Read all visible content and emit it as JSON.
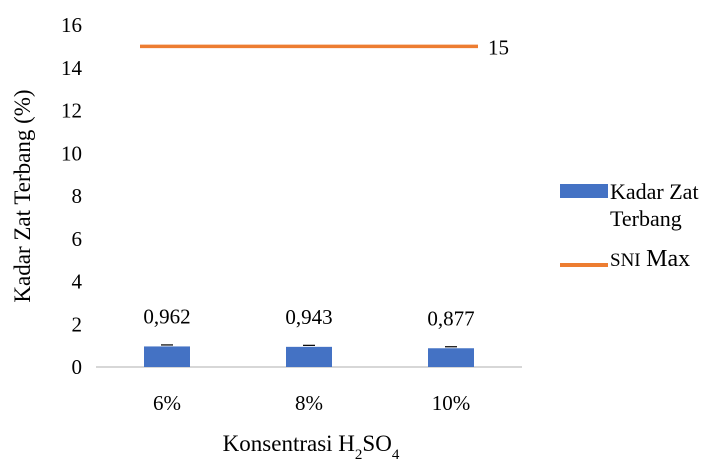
{
  "chart_data": {
    "type": "bar",
    "categories": [
      "6%",
      "8%",
      "10%"
    ],
    "series": [
      {
        "name": "Kadar Zat Terbang",
        "kind": "bar",
        "values": [
          0.962,
          0.943,
          0.877
        ],
        "color": "#4472C4"
      },
      {
        "name": "SNI Max",
        "kind": "line",
        "values": [
          15,
          15,
          15
        ],
        "color": "#ED7D31"
      }
    ],
    "data_labels": [
      "0,962",
      "0,943",
      "0,877"
    ],
    "line_label": "15",
    "ylim": [
      0,
      16
    ],
    "yticks": [
      0,
      2,
      4,
      6,
      8,
      10,
      12,
      14,
      16
    ],
    "ylabel": "Kadar Zat Terbang (%)",
    "xlabel": {
      "prefix": "Konsentrasi H",
      "sub1": "2",
      "mid": "SO",
      "sub2": "4"
    },
    "legend": {
      "bar_label_line1": "Kadar Zat",
      "bar_label_line2": "Terbang",
      "line_label_a": "SNI",
      "line_label_b": "Max"
    },
    "legend_position": "right",
    "grid": false,
    "error_bars": true
  }
}
